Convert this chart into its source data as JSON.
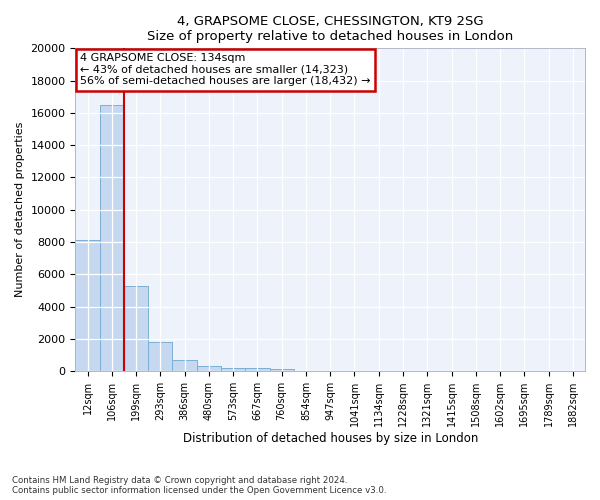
{
  "title": "4, GRAPSOME CLOSE, CHESSINGTON, KT9 2SG",
  "subtitle": "Size of property relative to detached houses in London",
  "xlabel": "Distribution of detached houses by size in London",
  "ylabel": "Number of detached properties",
  "categories": [
    "12sqm",
    "106sqm",
    "199sqm",
    "293sqm",
    "386sqm",
    "480sqm",
    "573sqm",
    "667sqm",
    "760sqm",
    "854sqm",
    "947sqm",
    "1041sqm",
    "1134sqm",
    "1228sqm",
    "1321sqm",
    "1415sqm",
    "1508sqm",
    "1602sqm",
    "1695sqm",
    "1789sqm",
    "1882sqm"
  ],
  "values": [
    8100,
    16500,
    5300,
    1800,
    700,
    300,
    200,
    175,
    130,
    0,
    0,
    0,
    0,
    0,
    0,
    0,
    0,
    0,
    0,
    0,
    0
  ],
  "bar_color": "#c5d8f0",
  "bar_edge_color": "#7bafd4",
  "red_line_index": 1.5,
  "annotation_title": "4 GRAPSOME CLOSE: 134sqm",
  "annotation_line1": "← 43% of detached houses are smaller (14,323)",
  "annotation_line2": "56% of semi-detached houses are larger (18,432) →",
  "annotation_box_facecolor": "#ffffff",
  "annotation_box_edgecolor": "#cc0000",
  "red_line_color": "#cc0000",
  "ylim_max": 20000,
  "yticks": [
    0,
    2000,
    4000,
    6000,
    8000,
    10000,
    12000,
    14000,
    16000,
    18000,
    20000
  ],
  "footer_line1": "Contains HM Land Registry data © Crown copyright and database right 2024.",
  "footer_line2": "Contains public sector information licensed under the Open Government Licence v3.0.",
  "plot_bg_color": "#edf2fb",
  "fig_bg_color": "#ffffff",
  "grid_color": "#ffffff",
  "spine_color": "#b0b8c8"
}
